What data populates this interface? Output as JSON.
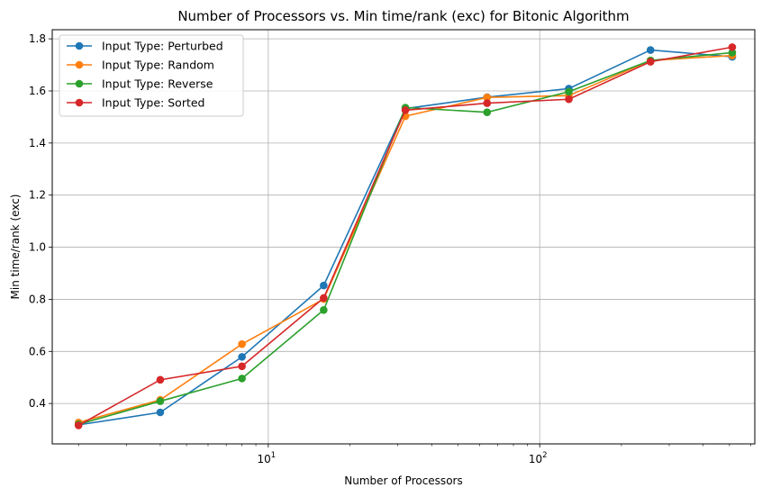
{
  "chart_data": {
    "type": "line",
    "title": "Number of Processors vs. Min time/rank (exc) for Bitonic Algorithm",
    "xlabel": "Number of Processors",
    "ylabel": "Min time/rank (exc)",
    "xscale": "log",
    "xlim": [
      1.6,
      620
    ],
    "ylim": [
      0.245,
      1.835
    ],
    "yticks": [
      "0.4",
      "0.6",
      "0.8",
      "1.0",
      "1.2",
      "1.4",
      "1.6",
      "1.8"
    ],
    "xticks": [
      {
        "base": "10",
        "exp": "1"
      },
      {
        "base": "10",
        "exp": "2"
      }
    ],
    "grid": true,
    "legend_position": "upper-left",
    "x": [
      2,
      4,
      8,
      16,
      32,
      64,
      128,
      256,
      512
    ],
    "series": [
      {
        "name": "Input Type: Perturbed",
        "color": "#1f77b4",
        "values": [
          0.318,
          0.366,
          0.579,
          0.853,
          1.532,
          1.576,
          1.609,
          1.757,
          1.731
        ]
      },
      {
        "name": "Input Type: Random",
        "color": "#ff7f0e",
        "values": [
          0.327,
          0.414,
          0.628,
          0.801,
          1.503,
          1.575,
          1.582,
          1.717,
          1.736
        ]
      },
      {
        "name": "Input Type: Reverse",
        "color": "#2ca02c",
        "values": [
          0.32,
          0.409,
          0.496,
          0.759,
          1.536,
          1.518,
          1.597,
          1.717,
          1.747
        ]
      },
      {
        "name": "Input Type: Sorted",
        "color": "#d62728",
        "values": [
          0.316,
          0.491,
          0.543,
          0.805,
          1.526,
          1.553,
          1.568,
          1.712,
          1.768
        ]
      }
    ]
  }
}
